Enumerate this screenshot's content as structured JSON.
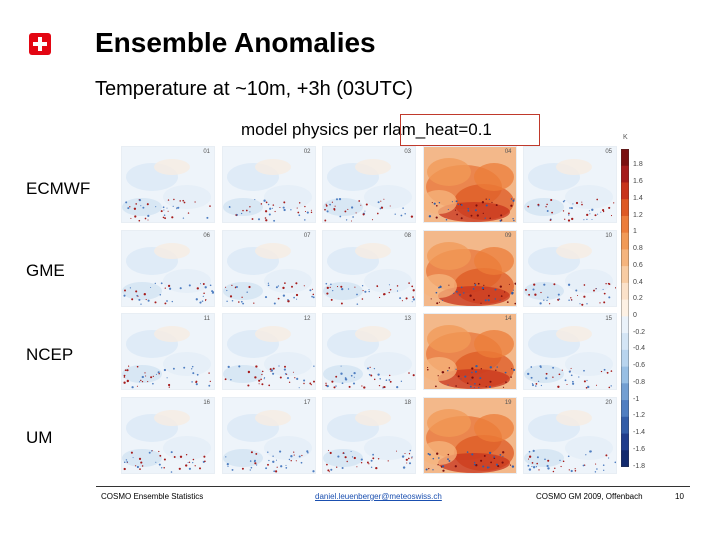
{
  "slide": {
    "title": "Ensemble Anomalies",
    "subtitle": "Temperature at ~10m, +3h (03UTC)",
    "caption": "model physics per rlam_heat=0.1",
    "row_labels": [
      "ECMWF",
      "GME",
      "NCEP",
      "UM"
    ],
    "panel_numbers": [
      "01",
      "02",
      "03",
      "04",
      "05",
      "06",
      "07",
      "08",
      "09",
      "10",
      "11",
      "12",
      "13",
      "14",
      "15",
      "16",
      "17",
      "18",
      "19",
      "20"
    ]
  },
  "colorbar": {
    "unit": "K",
    "ticks": [
      "1.8",
      "1.6",
      "1.4",
      "1.2",
      "1",
      "0.8",
      "0.6",
      "0.4",
      "0.2",
      "0",
      "-0.2",
      "-0.4",
      "-0.6",
      "-0.8",
      "-1",
      "-1.2",
      "-1.4",
      "-1.6",
      "-1.8"
    ],
    "colors": [
      "#7a0f0f",
      "#a51b1b",
      "#c8341c",
      "#de5a24",
      "#ec7d3a",
      "#f19a57",
      "#f5b47d",
      "#f8cca3",
      "#fbe1c9",
      "#fdf1e4",
      "#eaf2fa",
      "#d4e5f5",
      "#b8d4ee",
      "#98bfe4",
      "#739fd2",
      "#4f7ec1",
      "#325da8",
      "#1f3d8c",
      "#122a6e"
    ]
  },
  "footer": {
    "left": "COSMO Ensemble Statistics",
    "email": "daniel.leuenberger@meteoswiss.ch",
    "right": "COSMO GM 2009, Offenbach",
    "page": "10"
  },
  "colors": {
    "swiss_red": "#e30613",
    "caption_border": "#c0392b"
  }
}
